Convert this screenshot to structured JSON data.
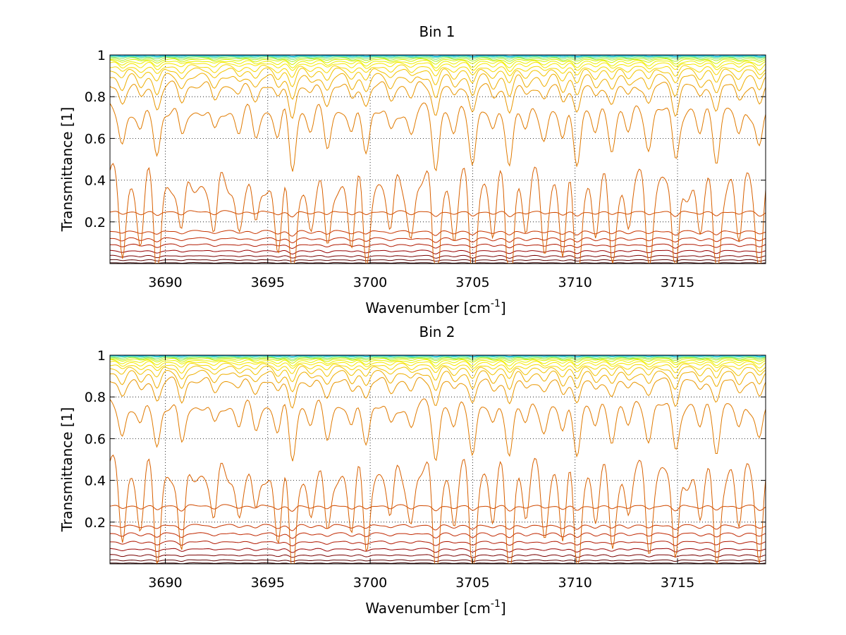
{
  "chart_data": [
    {
      "type": "line",
      "title": "Bin 1",
      "xlabel": "Wavenumber [cm",
      "xlabel_superscript": "-1",
      "xlabel_suffix": "]",
      "ylabel": "Transmittance [1]",
      "xlim": [
        3687.3,
        3719.3
      ],
      "ylim": [
        0,
        1
      ],
      "xticks": [
        3690,
        3695,
        3700,
        3705,
        3710,
        3715
      ],
      "yticks": [
        0.2,
        0.4,
        0.6,
        0.8,
        1
      ],
      "xtick_labels": [
        "3690",
        "3695",
        "3700",
        "3705",
        "3710",
        "3715"
      ],
      "ytick_labels": [
        "0.2",
        "0.4",
        "0.6",
        "0.8",
        "1"
      ],
      "grid": true,
      "legend": "none",
      "line_count": 22,
      "series_baselines": [
        0.005,
        0.02,
        0.04,
        0.065,
        0.095,
        0.125,
        0.16,
        0.255,
        0.5,
        0.78,
        0.88,
        0.915,
        0.94,
        0.955,
        0.968,
        0.976,
        0.983,
        0.988,
        0.992,
        0.995,
        0.997,
        0.999
      ],
      "series_colors": [
        "#3a0000",
        "#5a0000",
        "#7a0000",
        "#980000",
        "#b01800",
        "#c02800",
        "#c83600",
        "#d04a00",
        "#d86000",
        "#e07a00",
        "#e89600",
        "#eeae00",
        "#f2c400",
        "#f6d800",
        "#f8e800",
        "#ecf000",
        "#d2f000",
        "#a8ee30",
        "#80e870",
        "#50dcb0",
        "#28c8d8",
        "#10b0e8"
      ],
      "absorption_lines_cm1": [
        3687.9,
        3688.8,
        3689.6,
        3690.8,
        3692.4,
        3693.6,
        3694.4,
        3695.5,
        3696.2,
        3697.1,
        3697.9,
        3699.1,
        3699.8,
        3701.0,
        3702.0,
        3703.2,
        3704.1,
        3705.0,
        3706.0,
        3706.8,
        3707.6,
        3708.5,
        3709.4,
        3710.1,
        3711.0,
        3711.8,
        3712.6,
        3713.6,
        3714.9,
        3716.1,
        3716.9,
        3718.0,
        3719.0
      ],
      "absorption_depths": [
        0.55,
        0.45,
        0.75,
        0.5,
        0.45,
        0.35,
        0.45,
        0.5,
        1.0,
        0.35,
        0.6,
        0.5,
        0.65,
        0.45,
        0.4,
        0.95,
        0.45,
        0.85,
        0.45,
        0.9,
        0.4,
        0.45,
        0.6,
        0.85,
        0.45,
        0.6,
        0.4,
        0.6,
        0.85,
        0.45,
        0.8,
        0.5,
        0.65
      ]
    },
    {
      "type": "line",
      "title": "Bin 2",
      "xlabel": "Wavenumber [cm",
      "xlabel_superscript": "-1",
      "xlabel_suffix": "]",
      "ylabel": "Transmittance [1]",
      "xlim": [
        3687.3,
        3719.3
      ],
      "ylim": [
        0,
        1
      ],
      "xticks": [
        3690,
        3695,
        3700,
        3705,
        3710,
        3715
      ],
      "yticks": [
        0.2,
        0.4,
        0.6,
        0.8,
        1
      ],
      "xtick_labels": [
        "3690",
        "3695",
        "3700",
        "3705",
        "3710",
        "3715"
      ],
      "ytick_labels": [
        "0.2",
        "0.4",
        "0.6",
        "0.8",
        "1"
      ],
      "grid": true,
      "legend": "none",
      "line_count": 22,
      "series_baselines": [
        0.005,
        0.02,
        0.045,
        0.075,
        0.11,
        0.15,
        0.19,
        0.285,
        0.54,
        0.8,
        0.9,
        0.93,
        0.95,
        0.963,
        0.973,
        0.98,
        0.986,
        0.99,
        0.993,
        0.996,
        0.998,
        0.999
      ],
      "series_colors": [
        "#3a0000",
        "#5a0000",
        "#7a0000",
        "#980000",
        "#b01800",
        "#c02800",
        "#c83600",
        "#d04a00",
        "#d86000",
        "#e07a00",
        "#e89600",
        "#eeae00",
        "#f2c400",
        "#f6d800",
        "#f8e800",
        "#ecf000",
        "#d2f000",
        "#a8ee30",
        "#80e870",
        "#50dcb0",
        "#28c8d8",
        "#10b0e8"
      ],
      "absorption_lines_cm1": [
        3687.9,
        3688.8,
        3689.6,
        3690.8,
        3692.4,
        3693.6,
        3694.4,
        3695.5,
        3696.2,
        3697.1,
        3697.9,
        3699.1,
        3699.8,
        3701.0,
        3702.0,
        3703.2,
        3704.1,
        3705.0,
        3706.0,
        3706.8,
        3707.6,
        3708.5,
        3709.4,
        3710.1,
        3711.0,
        3711.8,
        3712.6,
        3713.6,
        3714.9,
        3716.1,
        3716.9,
        3718.0,
        3719.0
      ],
      "absorption_depths": [
        0.55,
        0.45,
        0.75,
        0.8,
        0.45,
        0.35,
        0.45,
        0.55,
        1.0,
        0.35,
        0.6,
        0.5,
        0.65,
        0.45,
        0.4,
        0.95,
        0.45,
        0.85,
        0.45,
        0.9,
        0.4,
        0.45,
        0.6,
        0.85,
        0.45,
        0.6,
        0.4,
        0.6,
        0.85,
        0.45,
        0.8,
        0.5,
        0.65
      ]
    }
  ]
}
